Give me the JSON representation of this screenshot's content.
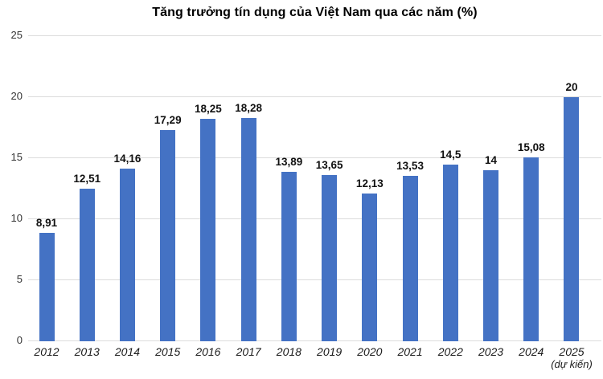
{
  "chart_data": {
    "type": "bar",
    "title": "Tăng trưởng tín dụng của Việt Nam qua các năm (%)",
    "categories": [
      "2012",
      "2013",
      "2014",
      "2015",
      "2016",
      "2017",
      "2018",
      "2019",
      "2020",
      "2021",
      "2022",
      "2023",
      "2024",
      "2025"
    ],
    "category_sublabels": [
      "",
      "",
      "",
      "",
      "",
      "",
      "",
      "",
      "",
      "",
      "",
      "",
      "",
      "(dự kiến)"
    ],
    "values": [
      8.91,
      12.51,
      14.16,
      17.29,
      18.25,
      18.28,
      13.89,
      13.65,
      12.13,
      13.53,
      14.5,
      14,
      15.08,
      20
    ],
    "value_labels": [
      "8,91",
      "12,51",
      "14,16",
      "17,29",
      "18,25",
      "18,28",
      "13,89",
      "13,65",
      "12,13",
      "13,53",
      "14,5",
      "14",
      "15,08",
      "20"
    ],
    "xlabel": "",
    "ylabel": "",
    "ylim": [
      0,
      25
    ],
    "yticks": [
      0,
      5,
      10,
      15,
      20,
      25
    ],
    "grid": true,
    "legend": "none",
    "bar_color": "#4472C4",
    "gridline_color": "#dcdcdc"
  }
}
